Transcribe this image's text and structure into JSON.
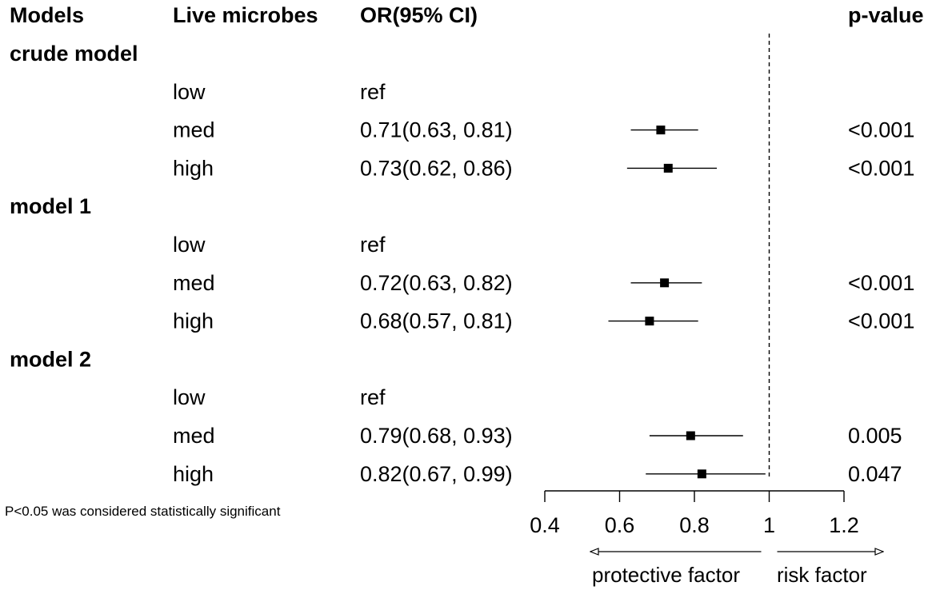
{
  "chart_data": {
    "type": "forest",
    "headers": {
      "models": "Models",
      "microbes": "Live microbes",
      "or": "OR(95% CI)",
      "p": "p-value"
    },
    "groups": [
      {
        "name": "crude model",
        "rows": [
          {
            "level": "low",
            "or_text": "ref",
            "or": null,
            "lo": null,
            "hi": null,
            "p": ""
          },
          {
            "level": "med",
            "or_text": "0.71(0.63, 0.81)",
            "or": 0.71,
            "lo": 0.63,
            "hi": 0.81,
            "p": "<0.001"
          },
          {
            "level": "high",
            "or_text": "0.73(0.62, 0.86)",
            "or": 0.73,
            "lo": 0.62,
            "hi": 0.86,
            "p": "<0.001"
          }
        ]
      },
      {
        "name": "model 1",
        "rows": [
          {
            "level": "low",
            "or_text": "ref",
            "or": null,
            "lo": null,
            "hi": null,
            "p": ""
          },
          {
            "level": "med",
            "or_text": "0.72(0.63, 0.82)",
            "or": 0.72,
            "lo": 0.63,
            "hi": 0.82,
            "p": "<0.001"
          },
          {
            "level": "high",
            "or_text": "0.68(0.57, 0.81)",
            "or": 0.68,
            "lo": 0.57,
            "hi": 0.81,
            "p": "<0.001"
          }
        ]
      },
      {
        "name": "model 2",
        "rows": [
          {
            "level": "low",
            "or_text": "ref",
            "or": null,
            "lo": null,
            "hi": null,
            "p": ""
          },
          {
            "level": "med",
            "or_text": "0.79(0.68, 0.93)",
            "or": 0.79,
            "lo": 0.68,
            "hi": 0.93,
            "p": "0.005"
          },
          {
            "level": "high",
            "or_text": "0.82(0.67, 0.99)",
            "or": 0.82,
            "lo": 0.67,
            "hi": 0.99,
            "p": "0.047"
          }
        ]
      }
    ],
    "x_axis": {
      "ticks": [
        0.4,
        0.6,
        0.8,
        1,
        1.2
      ],
      "tick_labels": [
        "0.4",
        "0.6",
        "0.8",
        "1",
        "1.2"
      ],
      "range": [
        0.4,
        1.2
      ],
      "reference_line": 1
    },
    "direction_labels": {
      "left": "protective factor",
      "right": "risk factor"
    },
    "footnote": "P<0.05 was considered statistically significant"
  }
}
